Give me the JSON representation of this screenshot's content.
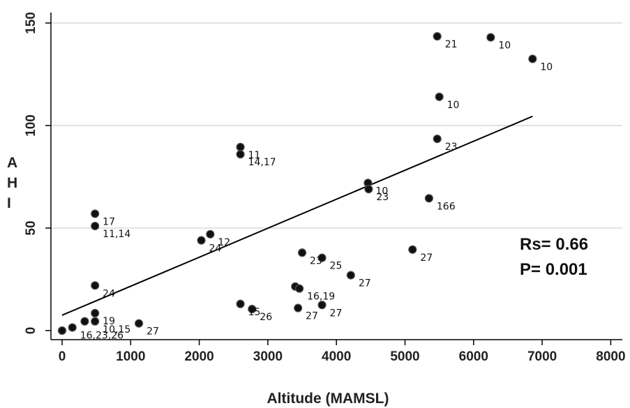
{
  "chart_data": {
    "type": "scatter",
    "xlabel": "Altitude (MAMSL)",
    "ylabel_letters": [
      "A",
      "H",
      "I"
    ],
    "xlim": [
      0,
      8000
    ],
    "ylim": [
      0,
      150
    ],
    "x_ticks": [
      "0",
      "1000",
      "2000",
      "3000",
      "4000",
      "5000",
      "6000",
      "7000",
      "8000"
    ],
    "y_ticks": [
      "0",
      "50",
      "100",
      "150"
    ],
    "grid": "horizontal",
    "points": [
      {
        "x": 0,
        "y": 0,
        "label": ""
      },
      {
        "x": 150,
        "y": 1.5,
        "label": "16,23,26"
      },
      {
        "x": 330,
        "y": 4.5,
        "label": ""
      },
      {
        "x": 480,
        "y": 4.5,
        "label": "10,15"
      },
      {
        "x": 480,
        "y": 8.5,
        "label": "19"
      },
      {
        "x": 480,
        "y": 22,
        "label": "24"
      },
      {
        "x": 480,
        "y": 51,
        "label": "11,14"
      },
      {
        "x": 480,
        "y": 57,
        "label": "17"
      },
      {
        "x": 1120,
        "y": 3.5,
        "label": "27"
      },
      {
        "x": 2030,
        "y": 44,
        "label": "24"
      },
      {
        "x": 2160,
        "y": 47,
        "label": "12"
      },
      {
        "x": 2600,
        "y": 89.5,
        "label": "11"
      },
      {
        "x": 2600,
        "y": 86,
        "label": "14,17"
      },
      {
        "x": 2600,
        "y": 13,
        "label": "15"
      },
      {
        "x": 2770,
        "y": 10.5,
        "label": "26"
      },
      {
        "x": 3400,
        "y": 21.5,
        "label": ""
      },
      {
        "x": 3460,
        "y": 20.5,
        "label": "16,19"
      },
      {
        "x": 3440,
        "y": 11,
        "label": "27"
      },
      {
        "x": 3500,
        "y": 38,
        "label": "23"
      },
      {
        "x": 3790,
        "y": 35.5,
        "label": "25"
      },
      {
        "x": 3790,
        "y": 12.5,
        "label": "27"
      },
      {
        "x": 4210,
        "y": 27,
        "label": "27"
      },
      {
        "x": 4460,
        "y": 72,
        "label": "10"
      },
      {
        "x": 4470,
        "y": 69,
        "label": "23"
      },
      {
        "x": 5110,
        "y": 39.5,
        "label": "27"
      },
      {
        "x": 5350,
        "y": 64.5,
        "label": "166"
      },
      {
        "x": 5470,
        "y": 143.5,
        "label": "21"
      },
      {
        "x": 5470,
        "y": 93.5,
        "label": "23"
      },
      {
        "x": 5500,
        "y": 114,
        "label": "10"
      },
      {
        "x": 6250,
        "y": 143,
        "label": "10"
      },
      {
        "x": 6860,
        "y": 132.5,
        "label": "10"
      }
    ],
    "fit_line": {
      "x": [
        0,
        6860
      ],
      "y": [
        7.5,
        104.5
      ]
    },
    "annotations": [
      "Rs= 0.66",
      "P= 0.001"
    ]
  },
  "colors": {
    "point_fill": "#111111",
    "point_stroke": "#555555",
    "line": "#000000",
    "grid": "#d9d9d9",
    "axis": "#000000"
  }
}
